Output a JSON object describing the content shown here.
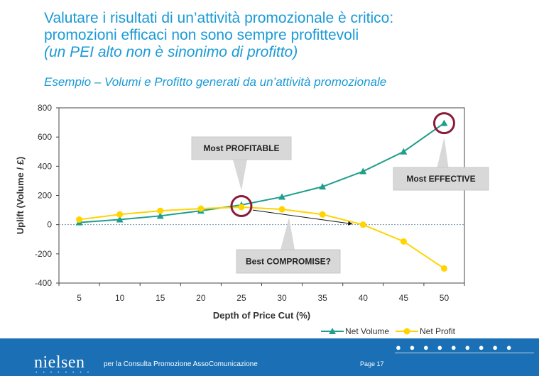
{
  "slide": {
    "title_line1": "Valutare i risultati di un’attività promozionale è critico:",
    "title_line2": "promozioni efficaci non sono sempre profittevoli",
    "title_line3": "(un PEI alto non è sinonimo di profitto)",
    "subtitle": "Esempio – Volumi e Profitto generati da un’attività promozionale"
  },
  "chart_data": {
    "type": "line",
    "x": [
      5,
      10,
      15,
      20,
      25,
      30,
      35,
      40,
      45,
      50
    ],
    "xlabel": "Depth of Price Cut (%)",
    "ylabel": "Uplift (Volume / £)",
    "ylim": [
      -400,
      800
    ],
    "yticks": [
      -400,
      -200,
      0,
      200,
      400,
      600,
      800
    ],
    "grid": false,
    "legend_position": "bottom-right",
    "series": [
      {
        "name": "Net Volume",
        "marker": "triangle",
        "color": "#1e9e8c",
        "values": [
          15,
          35,
          60,
          95,
          135,
          190,
          260,
          365,
          500,
          695
        ]
      },
      {
        "name": "Net Profit",
        "marker": "circle",
        "color": "#ffd400",
        "values": [
          35,
          70,
          95,
          110,
          120,
          105,
          70,
          0,
          -115,
          -300
        ]
      }
    ],
    "annotations": [
      {
        "text": "Most PROFITABLE",
        "target_x": 25
      },
      {
        "text": "Most EFFECTIVE",
        "target_x": 50
      },
      {
        "text": "Best COMPROMISE?",
        "target_x": 40
      }
    ]
  },
  "footer": {
    "logo": "nielsen",
    "tagline": "per la Consulta Promozione AssoComunicazione",
    "page": "Page 17"
  }
}
